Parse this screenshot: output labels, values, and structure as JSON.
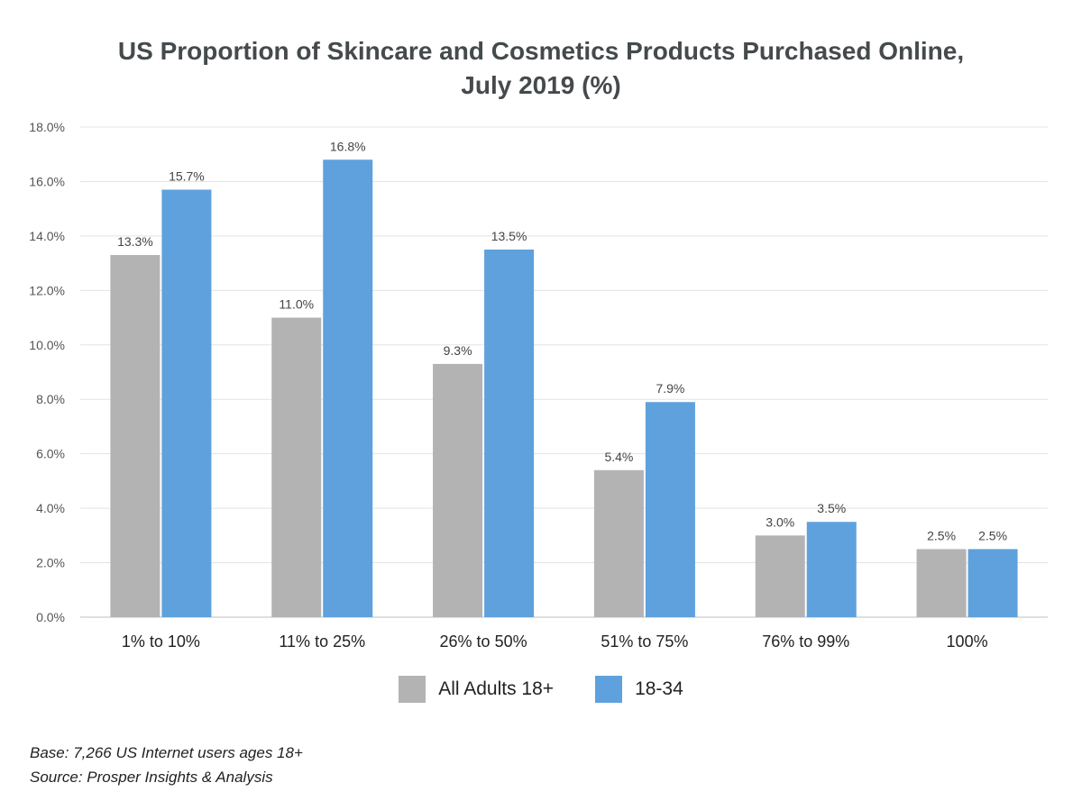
{
  "chart_data": {
    "type": "bar",
    "title": "US Proportion of Skincare and Cosmetics Products Purchased Online,",
    "subtitle": "July 2019 (%)",
    "categories": [
      "1% to 10%",
      "11% to 25%",
      "26% to 50%",
      "51% to 75%",
      "76% to 99%",
      "100%"
    ],
    "series": [
      {
        "name": "All Adults 18+",
        "values": [
          13.3,
          11.0,
          9.3,
          5.4,
          3.0,
          2.5
        ],
        "labels": [
          "13.3%",
          "11.0%",
          "9.3%",
          "5.4%",
          "3.0%",
          "2.5%"
        ],
        "color": "#b3b3b3"
      },
      {
        "name": "18-34",
        "values": [
          15.7,
          16.8,
          13.5,
          7.9,
          3.5,
          2.5
        ],
        "labels": [
          "15.7%",
          "16.8%",
          "13.5%",
          "7.9%",
          "3.5%",
          "2.5%"
        ],
        "color": "#5ea1dd"
      }
    ],
    "ylim": [
      0,
      18
    ],
    "yticks": [
      "0.0%",
      "2.0%",
      "4.0%",
      "6.0%",
      "8.0%",
      "10.0%",
      "12.0%",
      "14.0%",
      "16.0%",
      "18.0%"
    ],
    "grid": true,
    "legend": "bottom"
  },
  "footnote": {
    "base": "Base: 7,266 US Internet users ages 18+",
    "source": "Source: Prosper Insights & Analysis"
  }
}
